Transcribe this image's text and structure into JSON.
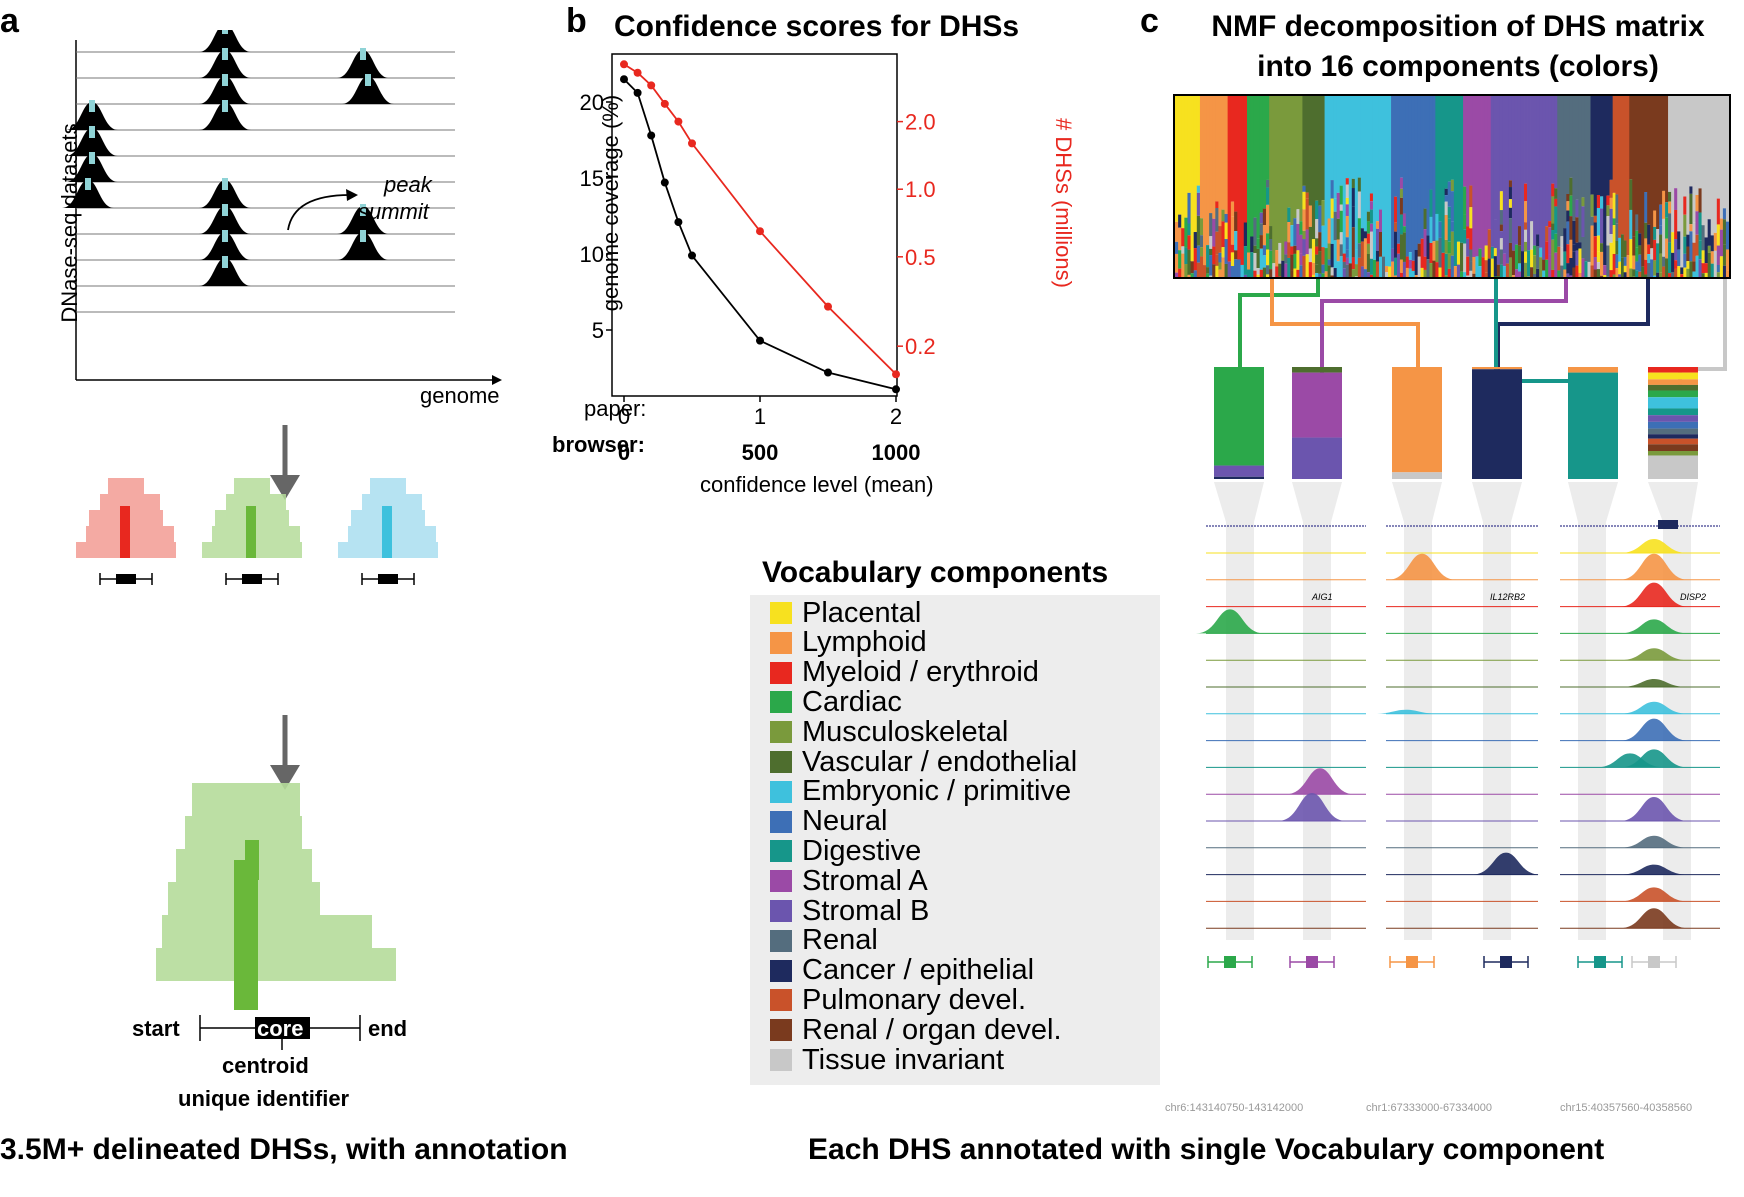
{
  "panels": {
    "a": {
      "letter": "a",
      "y_axis_label": "DNase-seq datasets",
      "x_axis_label": "genome",
      "annotation_line1": "peak",
      "annotation_line2": "summit",
      "start_label": "start",
      "core_label": "core",
      "end_label": "end",
      "centroid_label": "centroid",
      "unique_id_label": "unique identifier",
      "caption": "3.5M+ delineated DHSs, with annotation"
    },
    "b": {
      "letter": "b",
      "title": "Confidence scores for DHSs",
      "paper_label": "paper:",
      "browser_label": "browser:",
      "paper_ticks": [
        "0",
        "1",
        "2"
      ],
      "browser_ticks": [
        "0",
        "500",
        "1000"
      ],
      "x_axis_title": "confidence level (mean)",
      "left_axis_title": "genome coverage (%)",
      "right_axis_title": "# DHSs (millions)",
      "left_ticks": [
        "5",
        "10",
        "15",
        "20"
      ],
      "right_ticks": [
        "0.2",
        "0.5",
        "1.0",
        "2.0"
      ]
    },
    "c": {
      "letter": "c",
      "title_line1": "NMF decomposition of DHS matrix",
      "title_line2": "into 16 components (colors)",
      "legend_title": "Vocabulary components",
      "gene_labels": [
        "AIG1",
        "IL12RB2",
        "DISP2"
      ],
      "coords": [
        "chr6:143140750-143142000",
        "chr1:67333000-67334000",
        "chr15:40357560-40358560"
      ],
      "caption": "Each DHS annotated with single Vocabulary component"
    }
  },
  "components": [
    {
      "name": "Placental",
      "color": "#f7e11f"
    },
    {
      "name": "Lymphoid",
      "color": "#f59546"
    },
    {
      "name": "Myeloid / erythroid",
      "color": "#e8281f"
    },
    {
      "name": "Cardiac",
      "color": "#2ba84a"
    },
    {
      "name": "Musculoskeletal",
      "color": "#7a9a3c"
    },
    {
      "name": "Vascular / endothelial",
      "color": "#4e6e2e"
    },
    {
      "name": "Embryonic / primitive",
      "color": "#3ec1dd"
    },
    {
      "name": "Neural",
      "color": "#3d6fb6"
    },
    {
      "name": "Digestive",
      "color": "#16968a"
    },
    {
      "name": "Stromal A",
      "color": "#9b4aa6"
    },
    {
      "name": "Stromal B",
      "color": "#6b55ae"
    },
    {
      "name": "Renal",
      "color": "#546d7e"
    },
    {
      "name": "Cancer / epithelial",
      "color": "#1e2a5e"
    },
    {
      "name": "Pulmonary devel.",
      "color": "#c9522a"
    },
    {
      "name": "Renal / organ devel.",
      "color": "#7a3a1e"
    },
    {
      "name": "Tissue invariant",
      "color": "#c8c8c8"
    }
  ],
  "chart_data": {
    "type": "line",
    "title": "Confidence scores for DHSs",
    "xlabel": "confidence level (mean)",
    "x_paper": [
      0,
      0.1,
      0.2,
      0.3,
      0.4,
      0.5,
      1.0,
      1.5,
      2.0
    ],
    "x_browser": [
      0,
      50,
      100,
      150,
      200,
      250,
      500,
      750,
      1000
    ],
    "xlim": [
      0,
      2
    ],
    "series": [
      {
        "name": "genome coverage (%)",
        "axis": "left",
        "color": "#000000",
        "values": [
          21.5,
          20.6,
          17.8,
          14.7,
          12.1,
          9.9,
          4.3,
          2.2,
          1.1
        ]
      },
      {
        "name": "# DHSs (millions)",
        "axis": "right",
        "color": "#e8281f",
        "values": [
          3.6,
          3.3,
          2.9,
          2.4,
          2.0,
          1.6,
          0.65,
          0.3,
          0.15
        ]
      }
    ],
    "ylim_left": [
      0,
      22.5
    ],
    "right_axis_scale": "log"
  }
}
